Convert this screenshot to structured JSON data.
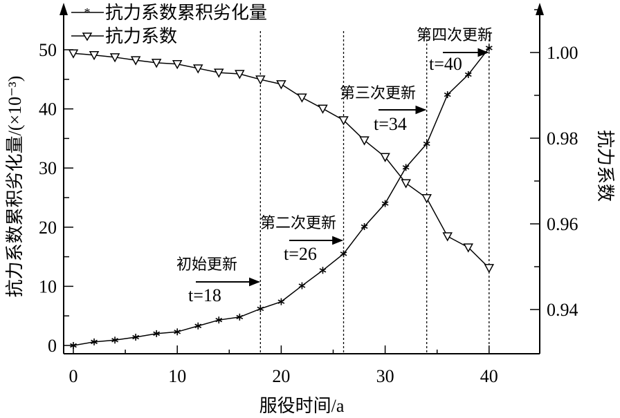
{
  "chart_data": {
    "type": "line",
    "title": "",
    "xlabel": "服役时间/a",
    "ylabel": "抗力系数累积劣化量/(×10⁻³)",
    "ylabel_right": "抗力系数",
    "xlim": [
      0,
      40
    ],
    "ylim": [
      0,
      50
    ],
    "ylim_right": [
      0.93,
      1.01
    ],
    "x_ticks": [
      "0",
      "10",
      "20",
      "30",
      "40"
    ],
    "y_ticks": [
      "0",
      "10",
      "20",
      "30",
      "40",
      "50"
    ],
    "y_ticks_right": [
      "0.94",
      "0.96",
      "0.98",
      "1.00"
    ],
    "grid": false,
    "legend_position": "top-left",
    "x": [
      0,
      2,
      4,
      6,
      8,
      10,
      12,
      14,
      16,
      18,
      20,
      22,
      24,
      26,
      28,
      30,
      32,
      34,
      36,
      38,
      40
    ],
    "series": [
      {
        "name": "抗力系数累积劣化量",
        "axis": "left",
        "marker": "asterisk",
        "values": [
          0,
          0.6,
          0.9,
          1.4,
          2.0,
          2.3,
          3.3,
          4.3,
          4.8,
          6.2,
          7.4,
          10.1,
          12.7,
          15.5,
          20.1,
          24.0,
          30.1,
          34.1,
          42.4,
          45.8,
          50.3
        ]
      },
      {
        "name": "抗力系数",
        "axis": "right",
        "marker": "triangle-down",
        "values": [
          0.9998,
          0.9994,
          0.9989,
          0.9982,
          0.9976,
          0.9973,
          0.9963,
          0.9953,
          0.995,
          0.9937,
          0.9926,
          0.9895,
          0.9869,
          0.9842,
          0.9795,
          0.9756,
          0.9695,
          0.966,
          0.9571,
          0.9545,
          0.9497
        ]
      }
    ],
    "annotations": [
      {
        "title": "初始更新",
        "label": "t=18",
        "x": 18
      },
      {
        "title": "第二次更新",
        "label": "t=26",
        "x": 26
      },
      {
        "title": "第三次更新",
        "label": "t=34",
        "x": 34
      },
      {
        "title": "第四次更新",
        "label": "t=40",
        "x": 40
      }
    ]
  }
}
